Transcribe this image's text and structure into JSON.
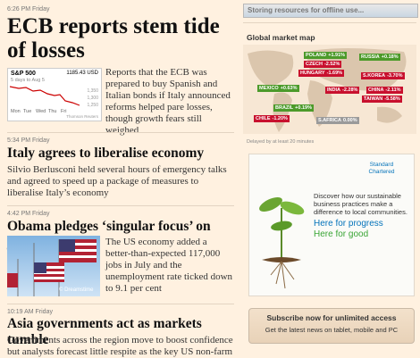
{
  "articles": [
    {
      "time": "6:26 PM Friday",
      "headline": "ECB reports stem tide of losses",
      "summary": "Reports that the ECB was prepared to buy Spanish and Italian bonds if Italy announced reforms helped pare losses, though growth fears still weighed"
    },
    {
      "time": "5:34 PM Friday",
      "headline": "Italy agrees to liberalise economy",
      "summary": "Silvio Berlusconi held several hours of emergency talks and agreed to speed up a package of measures to liberalise Italy’s economy"
    },
    {
      "time": "4:42 PM Friday",
      "headline": "Obama pledges ‘singular focus’ on jobs",
      "summary": "The US economy added a better-than-expected 117,000 jobs in July and the unemployment rate ticked down to 9.1 per cent"
    },
    {
      "time": "10:19 AM Friday",
      "headline": "Asia governments act as markets tumble",
      "summary": "Governments across the region move to boost confidence but analysts forecast little respite as the key US non-farm"
    }
  ],
  "stock_widget": {
    "index": "S&P 500",
    "price": "1185.43 USD",
    "period": "5 days to Aug 5",
    "levels": [
      "1,350",
      "1,300",
      "1,250"
    ],
    "days": [
      "Mon",
      "Tue",
      "Wed",
      "Thu",
      "Fri"
    ],
    "source": "Thomson Reuters"
  },
  "image_credit": "© Dreamstime",
  "sidebar": {
    "status": "Storing resources for offline use...",
    "map_title": "Global market map",
    "markets": [
      {
        "name": "POLAND",
        "change": "+1.91%"
      },
      {
        "name": "CZECH",
        "change": "-2.52%"
      },
      {
        "name": "HUNGARY",
        "change": "-1.69%"
      },
      {
        "name": "RUSSIA",
        "change": "+0.18%"
      },
      {
        "name": "S.KOREA",
        "change": "-3.70%"
      },
      {
        "name": "MEXICO",
        "change": "+0.63%"
      },
      {
        "name": "INDIA",
        "change": "-2.28%"
      },
      {
        "name": "CHINA",
        "change": "-2.11%"
      },
      {
        "name": "TAIWAN",
        "change": "-5.58%"
      },
      {
        "name": "BRAZIL",
        "change": "+0.19%"
      },
      {
        "name": "CHILE",
        "change": "-1.20%"
      },
      {
        "name": "S.AFRICA",
        "change": "0.00%"
      }
    ],
    "map_note": "Delayed by at least 20 minutes",
    "ad": {
      "brand": "Standard Chartered",
      "text": "Discover how our sustainable business practices make a difference to local communities.",
      "slogan1": "Here for progress",
      "slogan2": "Here for good"
    },
    "subscribe": {
      "title": "Subscribe now for unlimited access",
      "text": "Get the latest news on tablet, mobile and PC"
    }
  }
}
